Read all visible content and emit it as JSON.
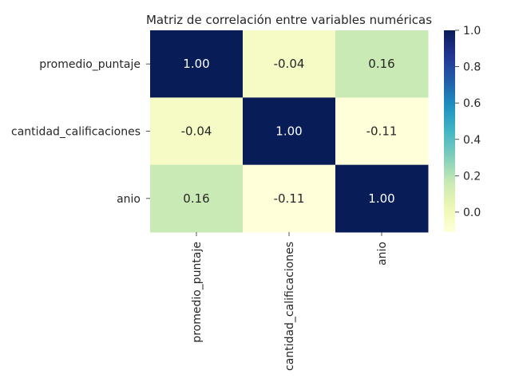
{
  "chart_data": {
    "type": "heatmap",
    "title": "Matriz de correlación entre variables numéricas",
    "row_labels": [
      "promedio_puntaje",
      "cantidad_calificaciones",
      "anio"
    ],
    "col_labels": [
      "promedio_puntaje",
      "cantidad_calificaciones",
      "anio"
    ],
    "values": [
      [
        1.0,
        -0.04,
        0.16
      ],
      [
        -0.04,
        1.0,
        -0.11
      ],
      [
        0.16,
        -0.11,
        1.0
      ]
    ],
    "cell_labels": [
      [
        "1.00",
        "-0.04",
        "0.16"
      ],
      [
        "-0.04",
        "1.00",
        "-0.11"
      ],
      [
        "0.16",
        "-0.11",
        "1.00"
      ]
    ],
    "colormap": "YlGnBu",
    "color_range": [
      -0.11,
      1.0
    ],
    "colorbar": {
      "ticks": [
        0.0,
        0.2,
        0.4,
        0.6,
        0.8,
        1.0
      ],
      "tick_labels": [
        "0.0",
        "0.2",
        "0.4",
        "0.6",
        "0.8",
        "1.0"
      ]
    },
    "grid": false
  }
}
